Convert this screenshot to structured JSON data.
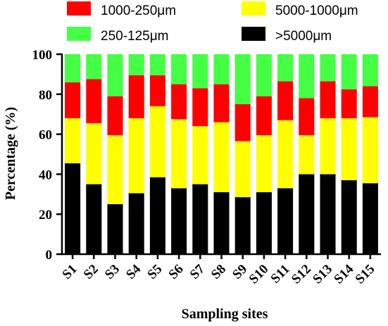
{
  "chart_data": {
    "type": "bar",
    "stacked": true,
    "xlabel": "Sampling sites",
    "ylabel": "Percentage (%)",
    "ylim": [
      0,
      100
    ],
    "yticks": [
      0,
      20,
      40,
      60,
      80,
      100
    ],
    "grid": false,
    "legend_position": "top",
    "categories": [
      "S1",
      "S2",
      "S3",
      "S4",
      "S5",
      "S6",
      "S7",
      "S8",
      "S9",
      "S10",
      "S11",
      "S12",
      "S13",
      "S14",
      "S15"
    ],
    "series": [
      {
        "name": ">5000μm",
        "color": "#000000",
        "values": [
          45.5,
          35,
          25,
          30.5,
          38.5,
          33,
          35,
          31,
          28.5,
          31,
          33,
          40,
          40,
          37,
          35.5
        ]
      },
      {
        "name": "5000-1000μm",
        "color": "#ffff00",
        "values": [
          22.5,
          30.5,
          34.5,
          37.5,
          35.5,
          34.5,
          29,
          35,
          28,
          28.5,
          34,
          19.5,
          28,
          31,
          33
        ]
      },
      {
        "name": "1000-250μm",
        "color": "#ff0000",
        "values": [
          18,
          22,
          19.5,
          21.5,
          15.5,
          17.5,
          19,
          19,
          18.5,
          19.5,
          19.5,
          18.5,
          18.5,
          14.5,
          15.5
        ]
      },
      {
        "name": "250-125μm",
        "color": "#44ff44",
        "values": [
          14,
          12.5,
          21,
          10.5,
          10.5,
          15,
          17,
          15,
          25,
          21,
          13.5,
          22,
          13.5,
          17.5,
          16
        ]
      }
    ],
    "legend_order": [
      "1000-250μm",
      "5000-1000μm",
      "250-125μm",
      ">5000μm"
    ]
  }
}
